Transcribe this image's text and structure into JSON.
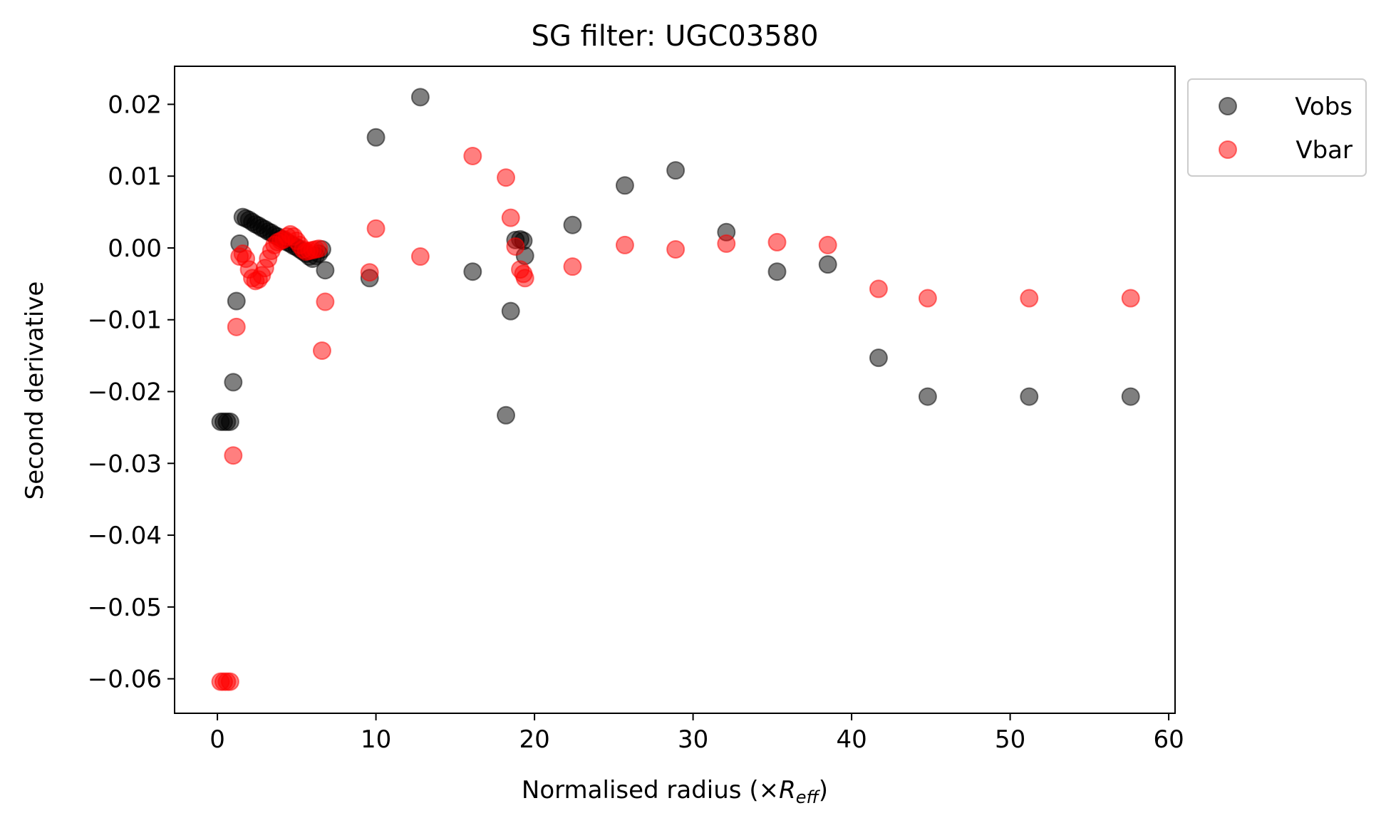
{
  "chart_data": {
    "type": "scatter",
    "title": "SG filter: UGC03580",
    "xlabel_prefix": "Normalised radius (×",
    "xlabel_var": "R",
    "xlabel_sub": "eff",
    "xlabel_suffix": ")",
    "ylabel": "Second derivative",
    "xlim": [
      -2.7,
      60.4
    ],
    "ylim": [
      -0.0648,
      0.0253
    ],
    "xticks": [
      0,
      10,
      20,
      30,
      40,
      50,
      60
    ],
    "xtick_labels": [
      "0",
      "10",
      "20",
      "30",
      "40",
      "50",
      "60"
    ],
    "yticks": [
      0.02,
      0.01,
      0.0,
      -0.01,
      -0.02,
      -0.03,
      -0.04,
      -0.05,
      -0.06
    ],
    "ytick_labels": [
      "0.02",
      "0.01",
      "0.00",
      "−0.01",
      "−0.02",
      "−0.03",
      "−0.04",
      "−0.05",
      "−0.06"
    ],
    "grid": false,
    "legend_position": "outside-top-right",
    "series": [
      {
        "name": "Vobs",
        "color": "#000000",
        "alpha": 0.5,
        "points": [
          [
            0.2,
            -0.0242
          ],
          [
            0.4,
            -0.0242
          ],
          [
            0.6,
            -0.0242
          ],
          [
            0.8,
            -0.0242
          ],
          [
            1.0,
            -0.0187
          ],
          [
            1.2,
            -0.0074
          ],
          [
            1.4,
            0.0006
          ],
          [
            1.6,
            0.0043
          ],
          [
            1.8,
            0.0041
          ],
          [
            2.0,
            0.0039
          ],
          [
            2.2,
            0.0036
          ],
          [
            2.4,
            0.0033
          ],
          [
            2.6,
            0.0031
          ],
          [
            2.8,
            0.0028
          ],
          [
            3.0,
            0.0026
          ],
          [
            3.2,
            0.0023
          ],
          [
            3.4,
            0.0021
          ],
          [
            3.6,
            0.0018
          ],
          [
            3.8,
            0.0016
          ],
          [
            4.0,
            0.0013
          ],
          [
            4.2,
            0.0011
          ],
          [
            4.4,
            0.0008
          ],
          [
            4.6,
            0.0006
          ],
          [
            4.8,
            0.0003
          ],
          [
            5.0,
            0.0001
          ],
          [
            5.2,
            -0.0002
          ],
          [
            5.4,
            -0.0005
          ],
          [
            5.6,
            -0.0008
          ],
          [
            5.8,
            -0.0012
          ],
          [
            6.0,
            -0.0015
          ],
          [
            6.2,
            -0.0011
          ],
          [
            6.4,
            -0.0008
          ],
          [
            6.6,
            -0.0002
          ],
          [
            6.8,
            -0.0031
          ],
          [
            9.6,
            -0.0042
          ],
          [
            10.0,
            0.0154
          ],
          [
            12.8,
            0.021
          ],
          [
            16.1,
            -0.0033
          ],
          [
            18.2,
            -0.0233
          ],
          [
            18.5,
            -0.0088
          ],
          [
            18.8,
            0.0011
          ],
          [
            19.1,
            0.0012
          ],
          [
            19.3,
            0.001
          ],
          [
            19.4,
            -0.0011
          ],
          [
            22.4,
            0.0032
          ],
          [
            25.7,
            0.0087
          ],
          [
            28.9,
            0.0108
          ],
          [
            32.1,
            0.0022
          ],
          [
            35.3,
            -0.0033
          ],
          [
            38.5,
            -0.0023
          ],
          [
            41.7,
            -0.0153
          ],
          [
            44.8,
            -0.0207
          ],
          [
            51.2,
            -0.0207
          ],
          [
            57.6,
            -0.0207
          ]
        ]
      },
      {
        "name": "Vbar",
        "color": "#ff0000",
        "alpha": 0.5,
        "points": [
          [
            0.2,
            -0.0604
          ],
          [
            0.4,
            -0.0604
          ],
          [
            0.6,
            -0.0604
          ],
          [
            0.8,
            -0.0604
          ],
          [
            1.0,
            -0.0289
          ],
          [
            1.2,
            -0.011
          ],
          [
            1.4,
            -0.0012
          ],
          [
            1.6,
            -0.0008
          ],
          [
            1.8,
            -0.0015
          ],
          [
            2.0,
            -0.003
          ],
          [
            2.2,
            -0.0042
          ],
          [
            2.4,
            -0.0046
          ],
          [
            2.6,
            -0.0044
          ],
          [
            2.8,
            -0.0038
          ],
          [
            3.0,
            -0.0028
          ],
          [
            3.2,
            -0.0015
          ],
          [
            3.4,
            -0.0004
          ],
          [
            3.6,
            0.0004
          ],
          [
            3.8,
            0.0008
          ],
          [
            4.0,
            0.001
          ],
          [
            4.2,
            0.0012
          ],
          [
            4.4,
            0.0016
          ],
          [
            4.6,
            0.0019
          ],
          [
            4.8,
            0.0016
          ],
          [
            5.0,
            0.001
          ],
          [
            5.2,
            0.0004
          ],
          [
            5.4,
            -0.0002
          ],
          [
            5.6,
            -0.0005
          ],
          [
            5.8,
            -0.0004
          ],
          [
            6.0,
            -0.0003
          ],
          [
            6.2,
            -0.0002
          ],
          [
            6.4,
            -0.0001
          ],
          [
            6.6,
            -0.0143
          ],
          [
            6.8,
            -0.0075
          ],
          [
            9.6,
            -0.0034
          ],
          [
            10.0,
            0.0027
          ],
          [
            12.8,
            -0.0012
          ],
          [
            16.1,
            0.0128
          ],
          [
            18.2,
            0.0098
          ],
          [
            18.5,
            0.0042
          ],
          [
            18.8,
            0.0002
          ],
          [
            19.1,
            -0.003
          ],
          [
            19.3,
            -0.0036
          ],
          [
            19.4,
            -0.0042
          ],
          [
            22.4,
            -0.0026
          ],
          [
            25.7,
            0.0004
          ],
          [
            28.9,
            -0.0002
          ],
          [
            32.1,
            0.0006
          ],
          [
            35.3,
            0.0008
          ],
          [
            38.5,
            0.0004
          ],
          [
            41.7,
            -0.0057
          ],
          [
            44.8,
            -0.007
          ],
          [
            51.2,
            -0.007
          ],
          [
            57.6,
            -0.007
          ]
        ]
      }
    ]
  }
}
